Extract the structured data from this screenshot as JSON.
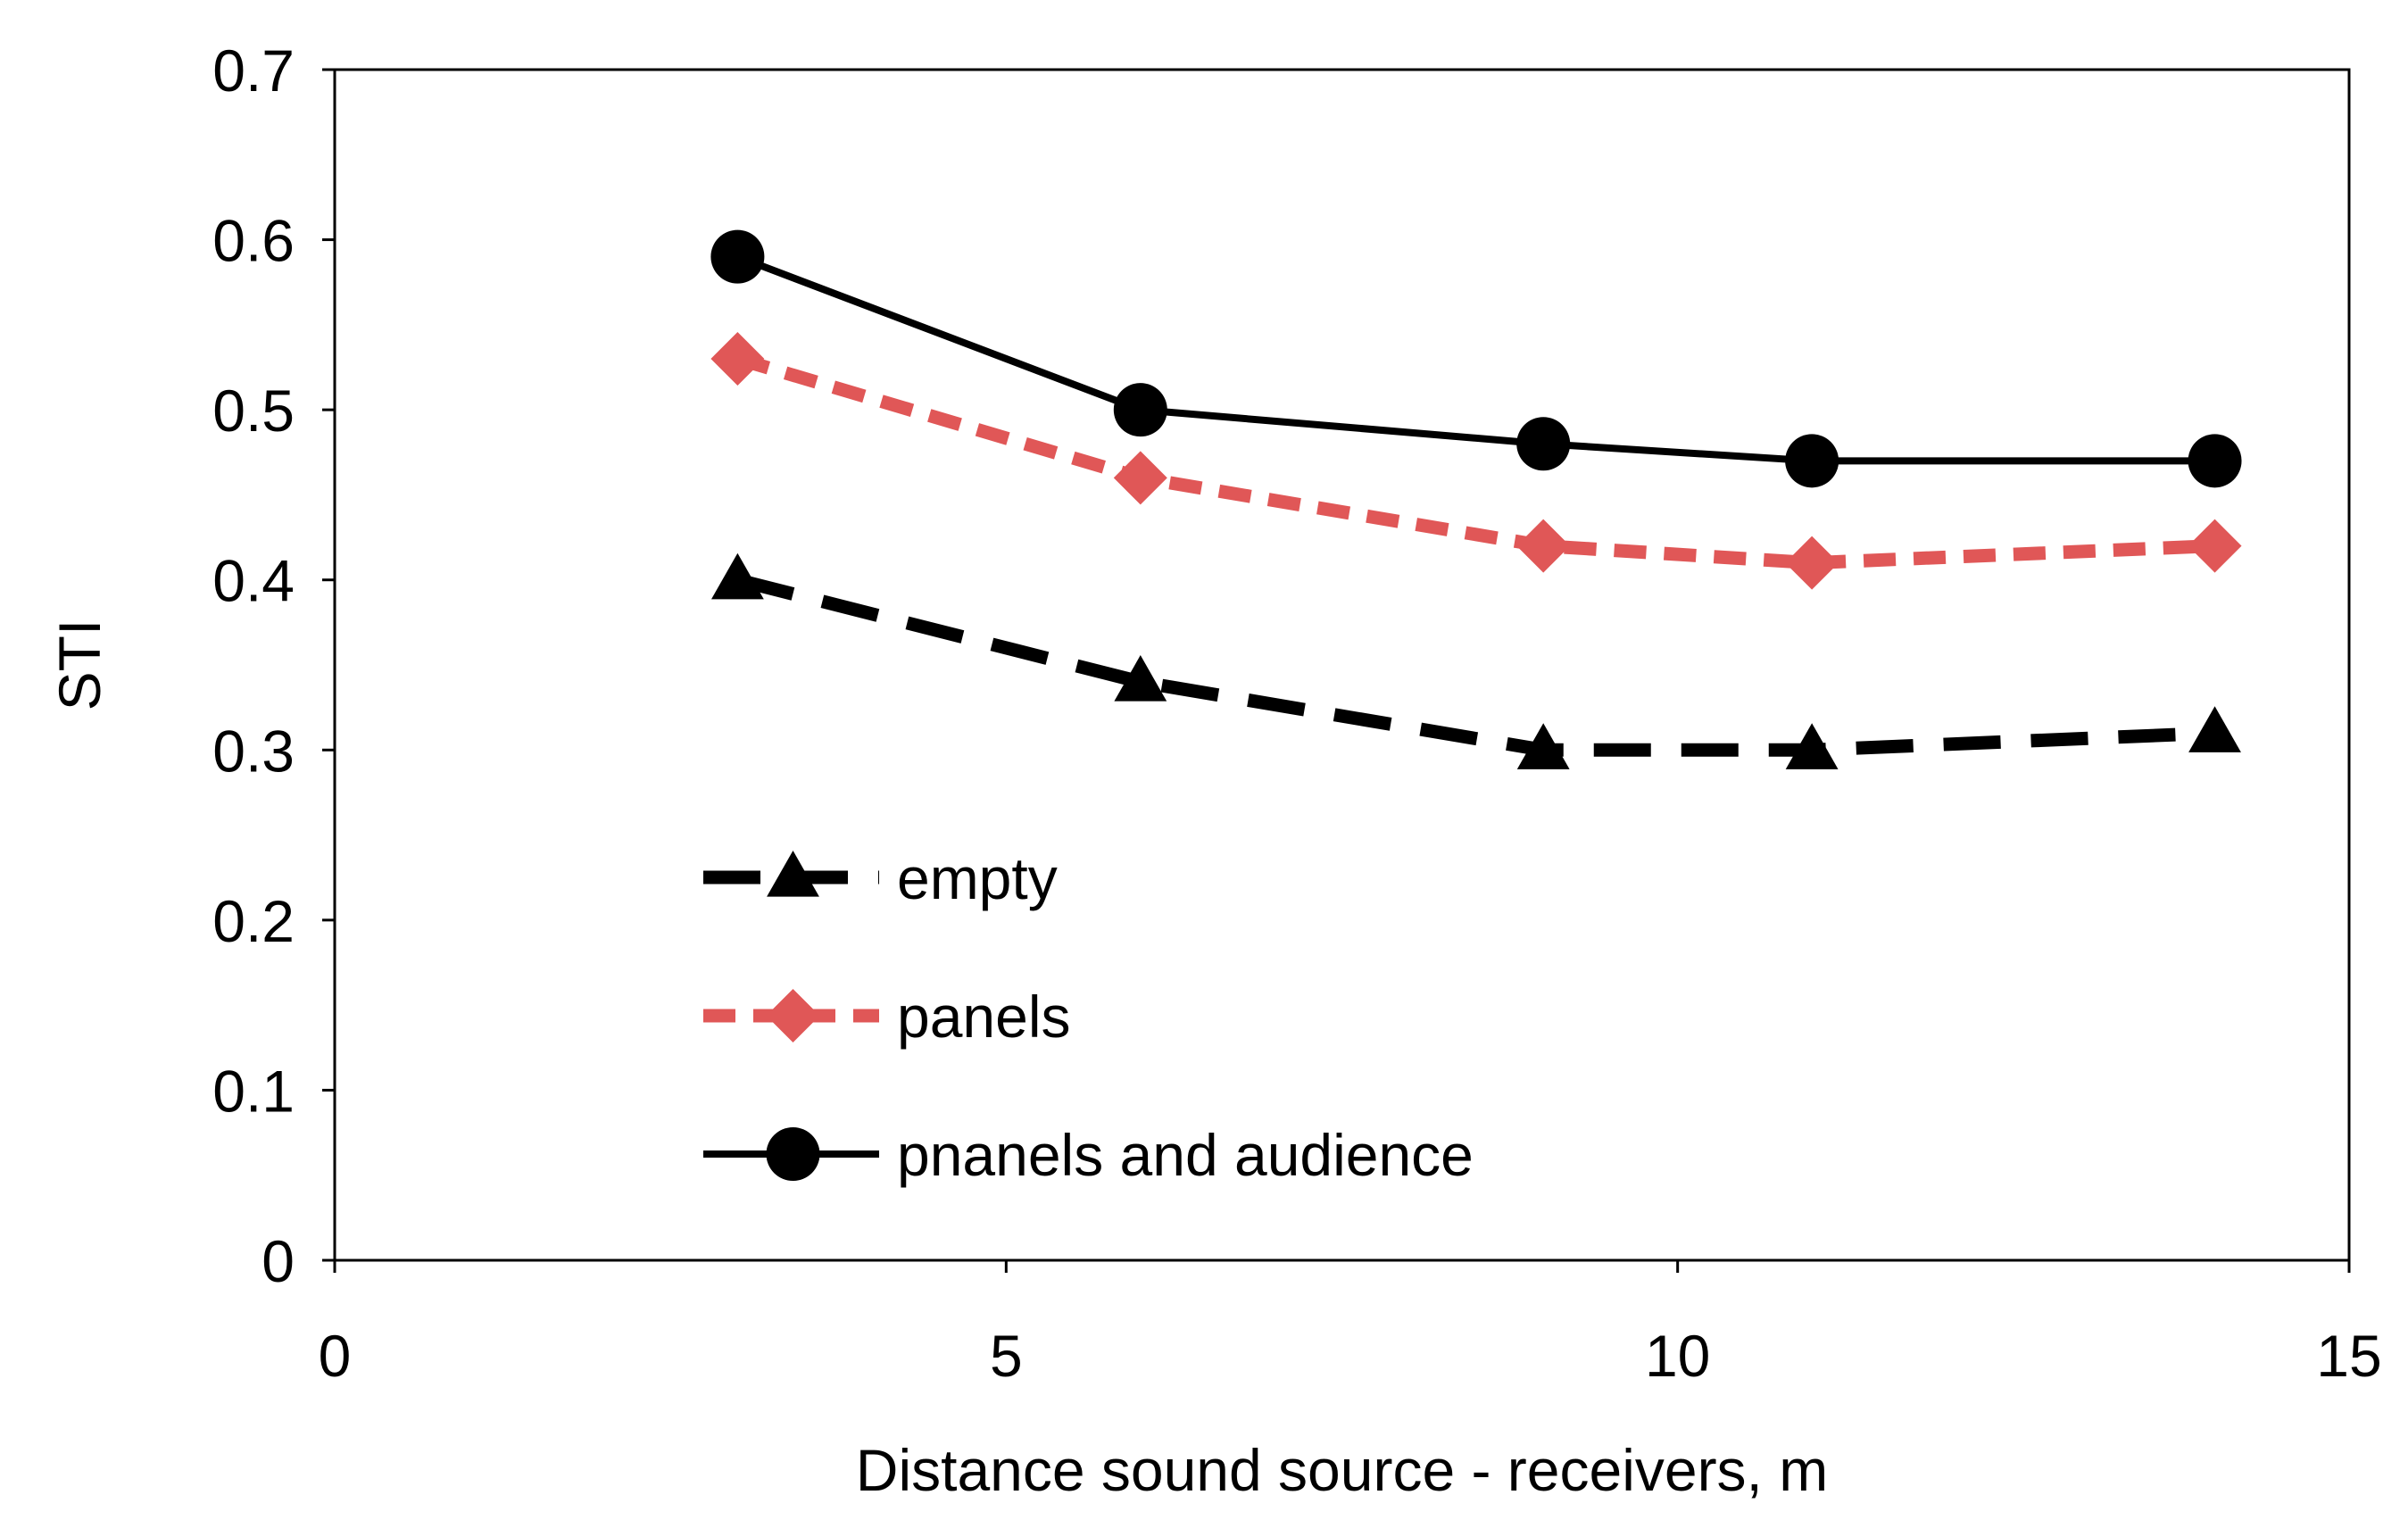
{
  "chart_data": {
    "type": "line",
    "title": "",
    "xlabel": "Distance sound source - receivers, m",
    "ylabel": "STI",
    "xlim": [
      0,
      15
    ],
    "ylim": [
      0,
      0.7
    ],
    "x_ticks": [
      "0",
      "5",
      "10",
      "15"
    ],
    "y_ticks": [
      "0",
      "0.1",
      "0.2",
      "0.3",
      "0.4",
      "0.5",
      "0.6",
      "0.7"
    ],
    "grid": false,
    "legend_position": "lower-left inside plot",
    "series": [
      {
        "name": "empty",
        "color": "#000000",
        "line_style": "dashed",
        "marker": "triangle",
        "points": [
          [
            3,
            0.4
          ],
          [
            6,
            0.34
          ],
          [
            9,
            0.3
          ],
          [
            11,
            0.3
          ],
          [
            14,
            0.31
          ]
        ]
      },
      {
        "name": "panels",
        "color": "#e05757",
        "line_style": "dashed",
        "marker": "diamond",
        "points": [
          [
            3,
            0.53
          ],
          [
            6,
            0.46
          ],
          [
            9,
            0.42
          ],
          [
            11,
            0.41
          ],
          [
            14,
            0.42
          ]
        ]
      },
      {
        "name": "pnanels and audience",
        "color": "#000000",
        "line_style": "solid",
        "marker": "circle",
        "points": [
          [
            3,
            0.59
          ],
          [
            6,
            0.5
          ],
          [
            9,
            0.48
          ],
          [
            11,
            0.47
          ],
          [
            14,
            0.47
          ]
        ]
      }
    ]
  }
}
